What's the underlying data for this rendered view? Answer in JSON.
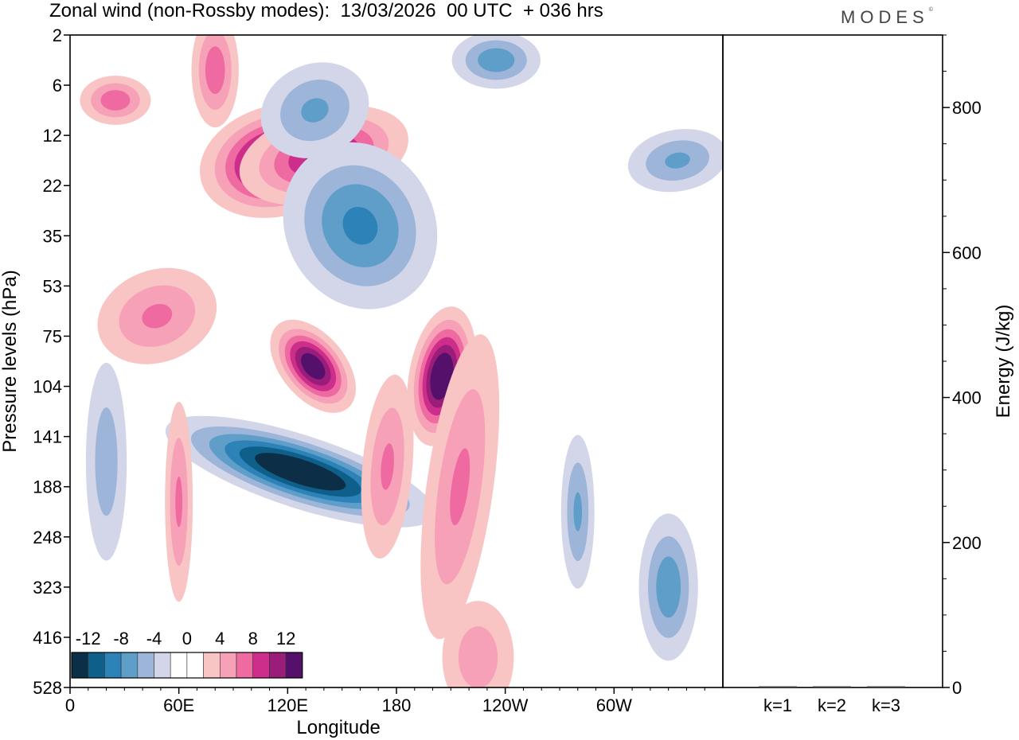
{
  "header": {
    "title": "Zonal wind (non-Rossby modes):  13/03/2026  00 UTC  + 036 hrs",
    "logo": "MODES",
    "logo_mark": "©"
  },
  "chart_data": [
    {
      "type": "heatmap",
      "title": "Zonal wind (non-Rossby modes):  13/03/2026  00 UTC  + 036 hrs",
      "xlabel": "Longitude",
      "ylabel": "Pressure levels (hPa)",
      "x_ticks": [
        {
          "lon": 0,
          "label": "0"
        },
        {
          "lon": 60,
          "label": "60E"
        },
        {
          "lon": 120,
          "label": "120E"
        },
        {
          "lon": 180,
          "label": "180"
        },
        {
          "lon": 240,
          "label": "120W"
        },
        {
          "lon": 300,
          "label": "60W"
        }
      ],
      "xlim": [
        0,
        360
      ],
      "y_levels": [
        "2",
        "6",
        "12",
        "22",
        "35",
        "53",
        "75",
        "104",
        "141",
        "188",
        "248",
        "323",
        "416",
        "528"
      ],
      "legend": {
        "labels": [
          "-12",
          "-8",
          "-4",
          "0",
          "4",
          "8",
          "12"
        ],
        "colors": [
          "#0c2f47",
          "#0f5f8b",
          "#2d83b8",
          "#5f9ec9",
          "#9db5d8",
          "#d2d6e8",
          "#ffffff",
          "#ffffff",
          "#f8c4c4",
          "#f7a1b8",
          "#ee6aa1",
          "#cd2e8b",
          "#9b1d7a",
          "#54106b"
        ],
        "placement": "bottom-left"
      },
      "features": [
        {
          "lon": 115,
          "level": 2.5,
          "value": 14,
          "sx": 22,
          "sy": 0.55,
          "rot": -15
        },
        {
          "lon": 140,
          "level": 2.4,
          "value": 10,
          "sx": 26,
          "sy": 0.5,
          "rot": -15
        },
        {
          "lon": 160,
          "level": 3.8,
          "value": -8,
          "sx": 24,
          "sy": 1.0,
          "rot": -28
        },
        {
          "lon": 135,
          "level": 1.5,
          "value": -6,
          "sx": 20,
          "sy": 0.6,
          "rot": -25
        },
        {
          "lon": 127,
          "level": 8.7,
          "value": -14,
          "sx": 10,
          "sy": 1.4,
          "rot": -72
        },
        {
          "lon": 134,
          "level": 6.6,
          "value": 13,
          "sx": 9,
          "sy": 0.55,
          "rot": -40
        },
        {
          "lon": 205,
          "level": 6.8,
          "value": 14,
          "sx": 9,
          "sy": 0.7,
          "rot": 10
        },
        {
          "lon": 215,
          "level": 9.0,
          "value": 6,
          "sx": 12,
          "sy": 2.0,
          "rot": 8
        },
        {
          "lon": 175,
          "level": 8.6,
          "value": 6,
          "sx": 9,
          "sy": 1.2,
          "rot": 5
        },
        {
          "lon": 25,
          "level": 1.3,
          "value": 7,
          "sx": 12,
          "sy": 0.3,
          "rot": 0
        },
        {
          "lon": 48,
          "level": 5.6,
          "value": 6,
          "sx": 22,
          "sy": 0.6,
          "rot": -20
        },
        {
          "lon": 235,
          "level": 0.5,
          "value": -7,
          "sx": 15,
          "sy": 0.35,
          "rot": 0
        },
        {
          "lon": 335,
          "level": 2.5,
          "value": -6,
          "sx": 18,
          "sy": 0.4,
          "rot": -10
        },
        {
          "lon": 330,
          "level": 11.0,
          "value": -7,
          "sx": 10,
          "sy": 0.9,
          "rot": 0
        },
        {
          "lon": 20,
          "level": 8.5,
          "value": -5,
          "sx": 8,
          "sy": 1.4,
          "rot": 0
        },
        {
          "lon": 60,
          "level": 9.3,
          "value": 6,
          "sx": 5,
          "sy": 1.3,
          "rot": 0
        },
        {
          "lon": 225,
          "level": 12.4,
          "value": 5,
          "sx": 14,
          "sy": 0.8,
          "rot": 0
        },
        {
          "lon": 280,
          "level": 9.5,
          "value": -6,
          "sx": 6,
          "sy": 1.0,
          "rot": 0
        },
        {
          "lon": 80,
          "level": 0.7,
          "value": 7,
          "sx": 8,
          "sy": 0.7,
          "rot": 0
        }
      ]
    },
    {
      "type": "bar",
      "categories": [
        "k=1",
        "k=2",
        "k=3"
      ],
      "values": [
        0,
        0,
        0
      ],
      "ylabel": "Energy (J/kg)",
      "ylim": [
        0,
        900
      ],
      "y_ticks": [
        0,
        200,
        400,
        600,
        800
      ]
    }
  ]
}
